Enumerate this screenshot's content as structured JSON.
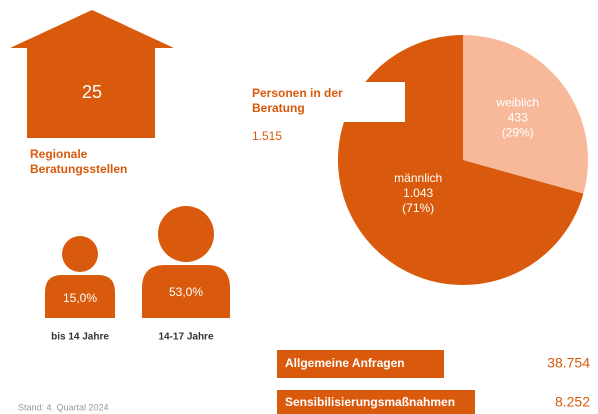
{
  "house": {
    "value_label": "25",
    "label": [
      "Regionale",
      "Beratungsstellen"
    ]
  },
  "persons": {
    "label": [
      "Personen in der",
      "Beratung"
    ],
    "total": "1.515"
  },
  "chart_data": {
    "type": "pie",
    "categories": [
      "männlich",
      "weiblich"
    ],
    "values": [
      1043,
      433
    ],
    "value_labels": [
      "1.043",
      "433"
    ],
    "percent_labels": [
      "(71%)",
      "(29%)"
    ],
    "colors": [
      "#d95a0c",
      "#f8b99b"
    ]
  },
  "age": [
    {
      "value_label": "15,0%",
      "label": "bis 14 Jahre"
    },
    {
      "value_label": "53,0%",
      "label": "14-17 Jahre"
    }
  ],
  "topics": [
    {
      "label": "Allgemeine Anfragen",
      "value": "38.754"
    },
    {
      "label": "Sensibilisierungsmaßnahmen",
      "value": "8.252"
    }
  ],
  "footer": "Stand: 4. Quartal 2024"
}
